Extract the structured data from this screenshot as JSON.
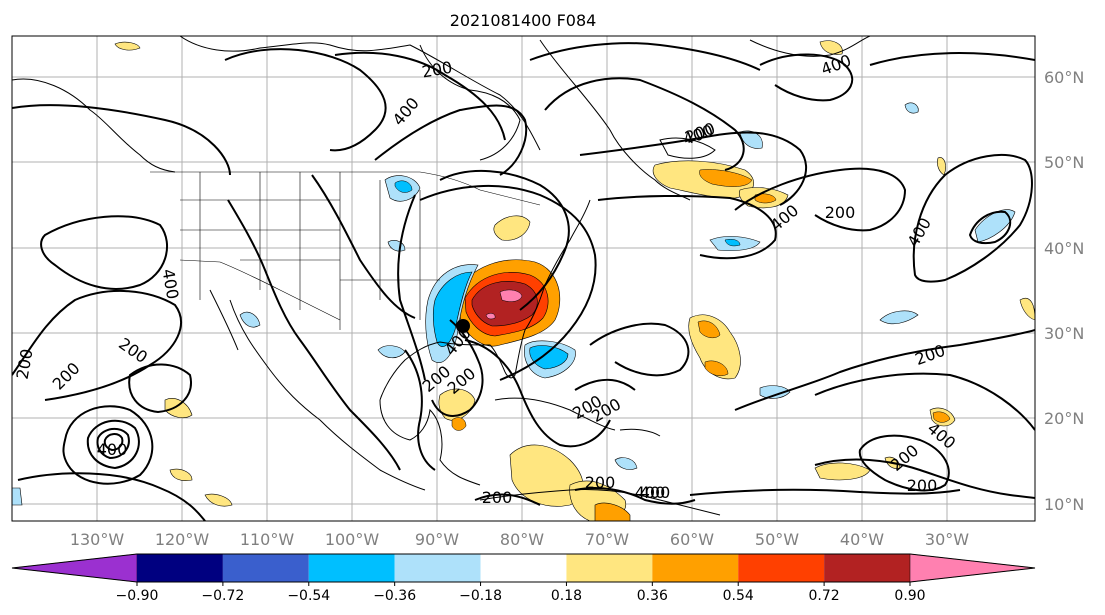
{
  "map": {
    "title": "2021081400 F084",
    "lon_labels": [
      "130°W",
      "120°W",
      "110°W",
      "100°W",
      "90°W",
      "80°W",
      "70°W",
      "60°W",
      "50°W",
      "40°W",
      "30°W"
    ],
    "lat_labels": [
      "60°N",
      "50°N",
      "40°N",
      "30°N",
      "20°N",
      "10°N"
    ],
    "contour_labels": [
      "200",
      "400",
      "400",
      "200",
      "200",
      "200",
      "400",
      "400",
      "200",
      "200",
      "200",
      "400",
      "200",
      "200",
      "400",
      "200",
      "400",
      "400",
      "200",
      "400",
      "200",
      "200",
      "400",
      "400",
      "200",
      "200"
    ],
    "colors": {
      "land_border": "#000000",
      "contour": "#000000",
      "grid": "#b0b0b0",
      "frame": "#000000"
    }
  },
  "colorbar": {
    "tick_labels": [
      "−0.90",
      "−0.72",
      "−0.54",
      "−0.36",
      "−0.18",
      "0.18",
      "0.36",
      "0.54",
      "0.72",
      "0.90"
    ],
    "bin_colors": [
      "#9b30d0",
      "#000080",
      "#3a5fcd",
      "#00bfff",
      "#aee1fa",
      "#ffffff",
      "#ffe680",
      "#ffa000",
      "#ff4000",
      "#b22222",
      "#ff80b0"
    ]
  }
}
